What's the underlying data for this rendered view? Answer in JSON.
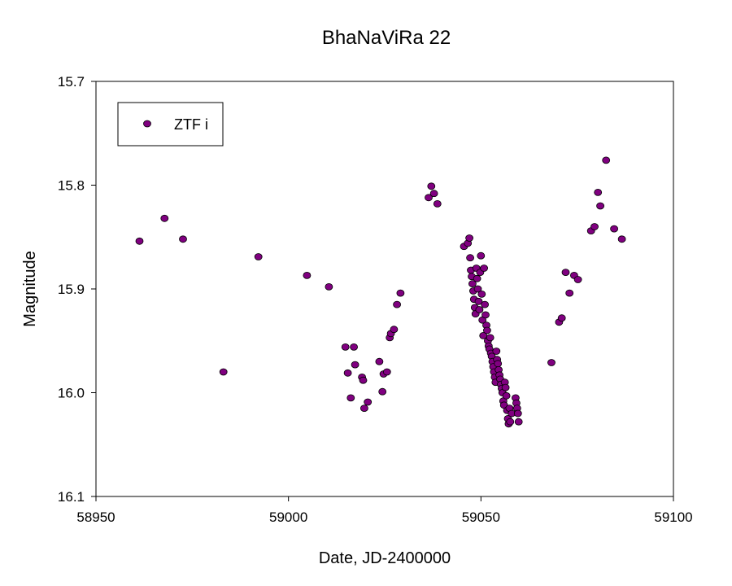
{
  "chart_data": {
    "type": "scatter",
    "title": "BhaNaViRa 22",
    "xlabel": "Date, JD-2400000",
    "ylabel": "Magnitude",
    "xlim": [
      58950,
      59100
    ],
    "ylim": [
      15.7,
      16.1
    ],
    "y_inverted": true,
    "xticks": [
      58950,
      59000,
      59050,
      59100
    ],
    "yticks": [
      15.7,
      15.8,
      15.9,
      16.0,
      16.1
    ],
    "xtick_labels": [
      "58950",
      "59000",
      "59050",
      "59100"
    ],
    "ytick_labels": [
      "15.7",
      "15.8",
      "15.9",
      "16.0",
      "16.1"
    ],
    "grid": false,
    "legend_position": "top-left",
    "marker_color": "#800080",
    "series": [
      {
        "name": "ZTF i",
        "points": [
          [
            58961.3,
            15.854
          ],
          [
            58967.8,
            15.832
          ],
          [
            58972.6,
            15.852
          ],
          [
            58983.1,
            15.98
          ],
          [
            58992.2,
            15.869
          ],
          [
            59004.8,
            15.887
          ],
          [
            59010.5,
            15.898
          ],
          [
            59014.8,
            15.956
          ],
          [
            59015.4,
            15.981
          ],
          [
            59016.2,
            16.005
          ],
          [
            59017.0,
            15.956
          ],
          [
            59017.3,
            15.973
          ],
          [
            59019.1,
            15.985
          ],
          [
            59019.4,
            15.988
          ],
          [
            59019.7,
            16.015
          ],
          [
            59020.6,
            16.009
          ],
          [
            59023.6,
            15.97
          ],
          [
            59024.4,
            15.999
          ],
          [
            59024.7,
            15.982
          ],
          [
            59025.6,
            15.98
          ],
          [
            59026.3,
            15.947
          ],
          [
            59026.6,
            15.943
          ],
          [
            59027.4,
            15.939
          ],
          [
            59028.2,
            15.915
          ],
          [
            59029.1,
            15.904
          ],
          [
            59036.4,
            15.812
          ],
          [
            59037.1,
            15.801
          ],
          [
            59037.8,
            15.808
          ],
          [
            59038.7,
            15.818
          ],
          [
            59045.6,
            15.859
          ],
          [
            59046.6,
            15.856
          ],
          [
            59047.0,
            15.851
          ],
          [
            59047.2,
            15.87
          ],
          [
            59047.4,
            15.882
          ],
          [
            59047.6,
            15.888
          ],
          [
            59047.8,
            15.895
          ],
          [
            59048.0,
            15.902
          ],
          [
            59048.2,
            15.91
          ],
          [
            59048.4,
            15.918
          ],
          [
            59048.6,
            15.924
          ],
          [
            59048.8,
            15.88
          ],
          [
            59049.0,
            15.89
          ],
          [
            59049.2,
            15.9
          ],
          [
            59049.4,
            15.912
          ],
          [
            59049.6,
            15.92
          ],
          [
            59049.8,
            15.884
          ],
          [
            59050.0,
            15.868
          ],
          [
            59050.2,
            15.905
          ],
          [
            59050.4,
            15.93
          ],
          [
            59050.6,
            15.945
          ],
          [
            59050.8,
            15.88
          ],
          [
            59051.0,
            15.915
          ],
          [
            59051.2,
            15.925
          ],
          [
            59051.4,
            15.935
          ],
          [
            59051.6,
            15.94
          ],
          [
            59051.8,
            15.95
          ],
          [
            59052.0,
            15.955
          ],
          [
            59052.2,
            15.958
          ],
          [
            59052.4,
            15.947
          ],
          [
            59052.6,
            15.962
          ],
          [
            59052.8,
            15.965
          ],
          [
            59053.0,
            15.97
          ],
          [
            59053.2,
            15.975
          ],
          [
            59053.4,
            15.98
          ],
          [
            59053.6,
            15.985
          ],
          [
            59053.8,
            15.99
          ],
          [
            59054.0,
            15.96
          ],
          [
            59054.2,
            15.968
          ],
          [
            59054.4,
            15.972
          ],
          [
            59054.6,
            15.978
          ],
          [
            59054.8,
            15.983
          ],
          [
            59055.0,
            15.987
          ],
          [
            59055.2,
            15.992
          ],
          [
            59055.4,
            15.996
          ],
          [
            59055.6,
            16.0
          ],
          [
            59055.8,
            16.008
          ],
          [
            59056.0,
            16.012
          ],
          [
            59056.2,
            15.99
          ],
          [
            59056.4,
            15.995
          ],
          [
            59056.6,
            16.003
          ],
          [
            59056.8,
            16.017
          ],
          [
            59057.0,
            16.025
          ],
          [
            59057.2,
            16.03
          ],
          [
            59057.4,
            16.015
          ],
          [
            59057.6,
            16.028
          ],
          [
            59058.0,
            16.02
          ],
          [
            59059.0,
            16.005
          ],
          [
            59059.2,
            16.01
          ],
          [
            59059.4,
            16.015
          ],
          [
            59059.6,
            16.02
          ],
          [
            59059.8,
            16.028
          ],
          [
            59068.3,
            15.971
          ],
          [
            59070.3,
            15.932
          ],
          [
            59071.0,
            15.928
          ],
          [
            59072.0,
            15.884
          ],
          [
            59073.0,
            15.904
          ],
          [
            59074.2,
            15.887
          ],
          [
            59075.2,
            15.891
          ],
          [
            59078.6,
            15.844
          ],
          [
            59079.5,
            15.84
          ],
          [
            59080.4,
            15.807
          ],
          [
            59081.0,
            15.82
          ],
          [
            59082.5,
            15.776
          ],
          [
            59084.6,
            15.842
          ],
          [
            59086.6,
            15.852
          ]
        ]
      }
    ]
  }
}
